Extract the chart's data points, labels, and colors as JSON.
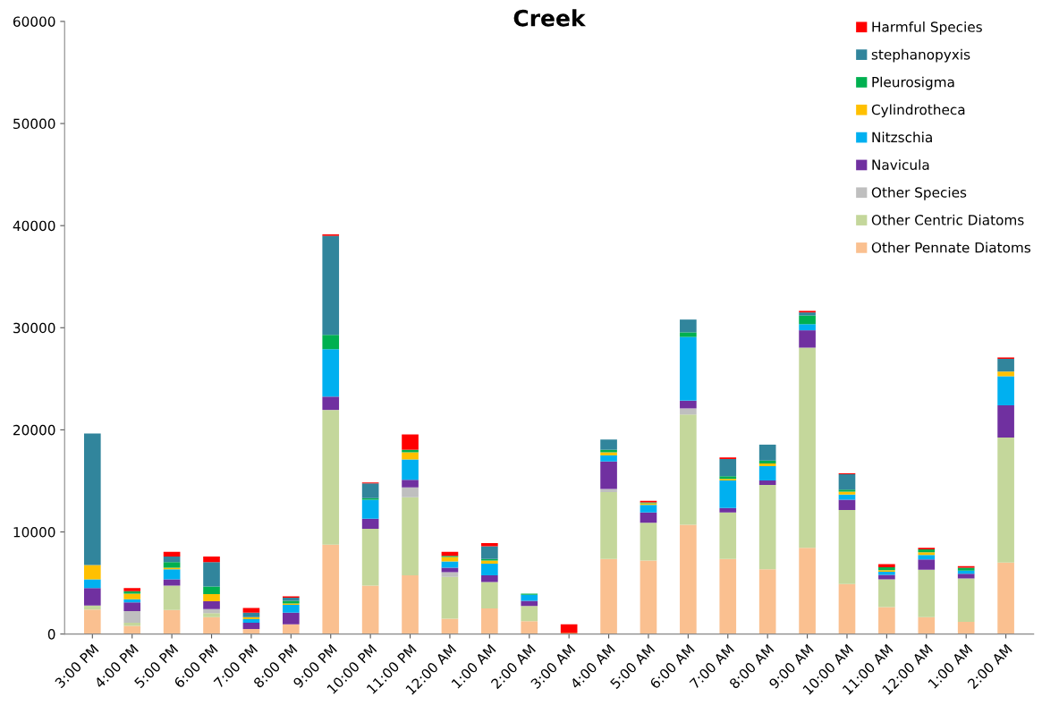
{
  "chart_data": {
    "type": "bar",
    "title": "Creek",
    "stacked": true,
    "categories": [
      "3:00 PM",
      "4:00 PM",
      "5:00 PM",
      "6:00 PM",
      "7:00 PM",
      "8:00 PM",
      "9:00 PM",
      "10:00 PM",
      "11:00 PM",
      "12:00 AM",
      "1:00 AM",
      "2:00 AM",
      "3:00 AM",
      "4:00 AM",
      "5:00 AM",
      "6:00 AM",
      "7:00 AM",
      "8:00 AM",
      "9:00 AM",
      "10:00 AM",
      "11:00 AM",
      "12:00 AM",
      "1:00 AM",
      "2:00 AM"
    ],
    "series": [
      {
        "name": "Other Pennate Diatoms",
        "color": "#fac090",
        "values": [
          2400,
          800,
          2350,
          1650,
          500,
          950,
          8750,
          4750,
          5750,
          1500,
          2500,
          1250,
          0,
          7350,
          7200,
          10700,
          7350,
          6350,
          8450,
          4900,
          2650,
          1650,
          1200,
          7000
        ]
      },
      {
        "name": "Other Centric Diatoms",
        "color": "#c4d79b",
        "values": [
          400,
          300,
          2400,
          400,
          0,
          0,
          13200,
          5550,
          7650,
          4100,
          2600,
          1500,
          0,
          6550,
          3700,
          10800,
          4550,
          8250,
          19600,
          7250,
          2700,
          4650,
          4250,
          12250
        ]
      },
      {
        "name": "Other Species",
        "color": "#bfbfbf",
        "values": [
          0,
          1150,
          0,
          400,
          0,
          0,
          0,
          0,
          950,
          450,
          0,
          0,
          0,
          300,
          0,
          600,
          0,
          0,
          0,
          0,
          0,
          0,
          0,
          0
        ]
      },
      {
        "name": "Navicula",
        "color": "#7030a0",
        "values": [
          1700,
          850,
          600,
          750,
          600,
          1150,
          1300,
          1000,
          750,
          450,
          650,
          500,
          0,
          2700,
          1000,
          750,
          450,
          450,
          1700,
          1000,
          450,
          1000,
          450,
          3150
        ]
      },
      {
        "name": "Nitzschia",
        "color": "#00b0f0",
        "values": [
          850,
          300,
          1000,
          0,
          350,
          750,
          4650,
          1850,
          2000,
          600,
          1150,
          600,
          0,
          600,
          750,
          6250,
          2700,
          1400,
          600,
          500,
          300,
          450,
          300,
          2850
        ]
      },
      {
        "name": "Cylindrotheca",
        "color": "#ffc000",
        "values": [
          1400,
          550,
          150,
          700,
          200,
          150,
          0,
          0,
          700,
          450,
          300,
          0,
          100,
          300,
          150,
          0,
          150,
          250,
          0,
          300,
          150,
          250,
          0,
          450
        ]
      },
      {
        "name": "Pleurosigma",
        "color": "#00b050",
        "values": [
          0,
          250,
          550,
          750,
          0,
          250,
          1400,
          150,
          250,
          100,
          150,
          100,
          0,
          250,
          100,
          450,
          250,
          300,
          850,
          200,
          300,
          300,
          300,
          0
        ]
      },
      {
        "name": "stephanopyxis",
        "color": "#31859c",
        "values": [
          12900,
          0,
          550,
          2400,
          450,
          300,
          9700,
          1450,
          0,
          0,
          1250,
          0,
          0,
          1000,
          0,
          1250,
          1700,
          1550,
          300,
          1500,
          0,
          0,
          0,
          1250
        ]
      },
      {
        "name": "Harmful Species",
        "color": "#ff0000",
        "values": [
          0,
          300,
          450,
          550,
          450,
          150,
          150,
          100,
          1500,
          400,
          300,
          0,
          850,
          0,
          150,
          0,
          150,
          0,
          150,
          100,
          300,
          150,
          150,
          150
        ]
      }
    ],
    "ylim": [
      0,
      60000
    ],
    "yticks": [
      0,
      10000,
      20000,
      30000,
      40000,
      50000,
      60000
    ],
    "grid": false,
    "legend": "top right"
  }
}
